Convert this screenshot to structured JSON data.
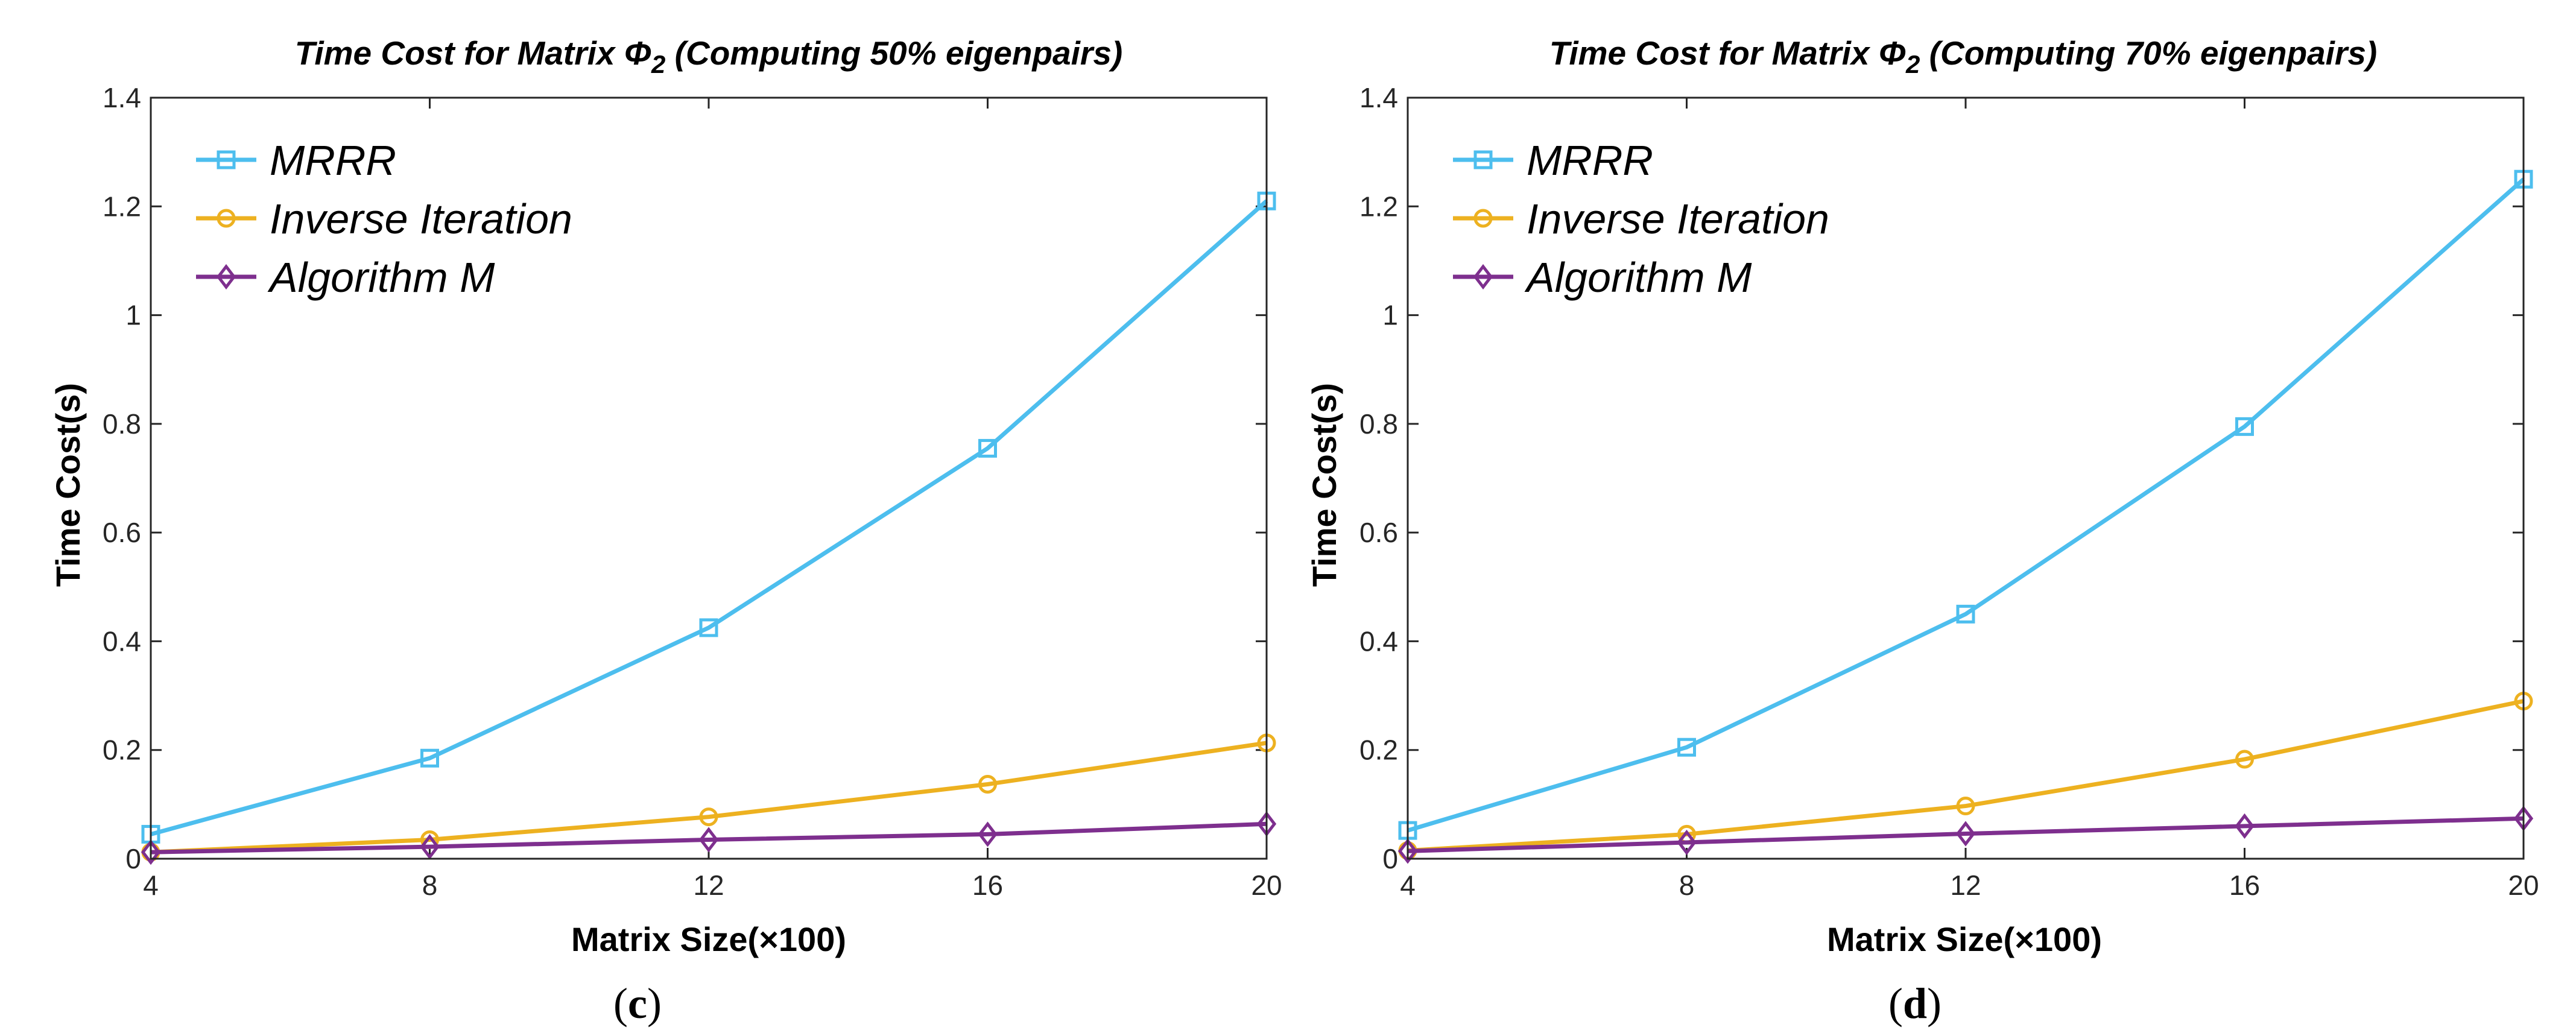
{
  "figure_captions": [
    {
      "open": "(",
      "letter": "c",
      "close": ")"
    },
    {
      "open": "(",
      "letter": "d",
      "close": ")"
    }
  ],
  "chart_data": [
    {
      "type": "line",
      "title": {
        "prefix": "Time Cost for Matrix ",
        "symbol": "Φ",
        "subscript": "2",
        "suffix": " (Computing 50% eigenpairs)"
      },
      "xlabel": "Matrix Size(×100)",
      "ylabel": "Time Cost(s)",
      "x": [
        4,
        8,
        12,
        16,
        20
      ],
      "xlim": [
        4,
        20
      ],
      "ylim": [
        0,
        1.4
      ],
      "xticks": [
        "4",
        "8",
        "12",
        "16",
        "20"
      ],
      "yticks": [
        "0",
        "0.2",
        "0.4",
        "0.6",
        "0.8",
        "1",
        "1.2",
        "1.4"
      ],
      "grid": false,
      "legend_position": "top-left",
      "series": [
        {
          "name": "MRRR",
          "color": "#4DBEEE",
          "marker": "square",
          "values": [
            0.045,
            0.185,
            0.425,
            0.755,
            1.21
          ]
        },
        {
          "name": "Inverse Iteration",
          "color": "#EDB120",
          "marker": "circle",
          "values": [
            0.012,
            0.035,
            0.077,
            0.137,
            0.213
          ]
        },
        {
          "name": "Algorithm M",
          "color": "#7E2F8E",
          "marker": "diamond",
          "values": [
            0.012,
            0.022,
            0.035,
            0.045,
            0.064
          ]
        }
      ]
    },
    {
      "type": "line",
      "title": {
        "prefix": "Time Cost for Matrix ",
        "symbol": "Φ",
        "subscript": "2",
        "suffix": " (Computing 70% eigenpairs)"
      },
      "xlabel": "Matrix Size(×100)",
      "ylabel": "Time Cost(s)",
      "x": [
        4,
        8,
        12,
        16,
        20
      ],
      "xlim": [
        4,
        20
      ],
      "ylim": [
        0,
        1.4
      ],
      "xticks": [
        "4",
        "8",
        "12",
        "16",
        "20"
      ],
      "yticks": [
        "0",
        "0.2",
        "0.4",
        "0.6",
        "0.8",
        "1",
        "1.2",
        "1.4"
      ],
      "grid": false,
      "legend_position": "top-left",
      "series": [
        {
          "name": "MRRR",
          "color": "#4DBEEE",
          "marker": "square",
          "values": [
            0.052,
            0.205,
            0.45,
            0.795,
            1.25
          ]
        },
        {
          "name": "Inverse Iteration",
          "color": "#EDB120",
          "marker": "circle",
          "values": [
            0.015,
            0.045,
            0.097,
            0.183,
            0.29
          ]
        },
        {
          "name": "Algorithm M",
          "color": "#7E2F8E",
          "marker": "diamond",
          "values": [
            0.014,
            0.03,
            0.046,
            0.06,
            0.074
          ]
        }
      ]
    }
  ]
}
